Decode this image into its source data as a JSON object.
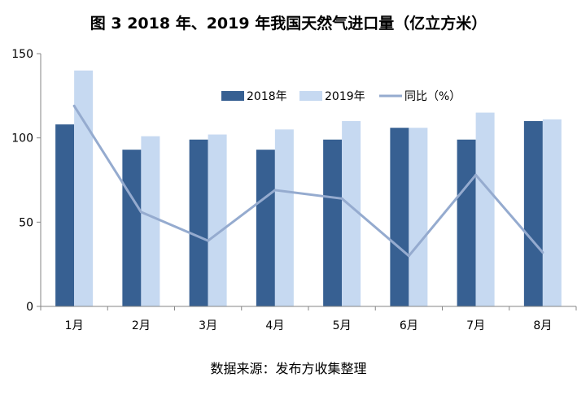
{
  "chart_data": {
    "type": "bar",
    "title": "图 3 2018 年、2019 年我国天然气进口量（亿立方米）",
    "source": "数据来源：发布方收集整理",
    "categories": [
      "1月",
      "2月",
      "3月",
      "4月",
      "5月",
      "6月",
      "7月",
      "8月"
    ],
    "series": [
      {
        "name": "2018年",
        "type": "bar",
        "color": "#376092",
        "values": [
          108,
          93,
          99,
          93,
          99,
          106,
          99,
          110
        ]
      },
      {
        "name": "2019年",
        "type": "bar",
        "color": "#c6d9f1",
        "values": [
          140,
          101,
          102,
          105,
          110,
          106,
          115,
          111
        ]
      },
      {
        "name": "同比（%）",
        "type": "line",
        "color": "#95abcf",
        "values": [
          119,
          56,
          39,
          69,
          64,
          30,
          78,
          32
        ]
      }
    ],
    "ylim": [
      0,
      150
    ],
    "yticks": [
      0,
      50,
      100,
      150
    ],
    "xlabel": "",
    "ylabel": "",
    "grid": false,
    "legend": "top-right"
  }
}
